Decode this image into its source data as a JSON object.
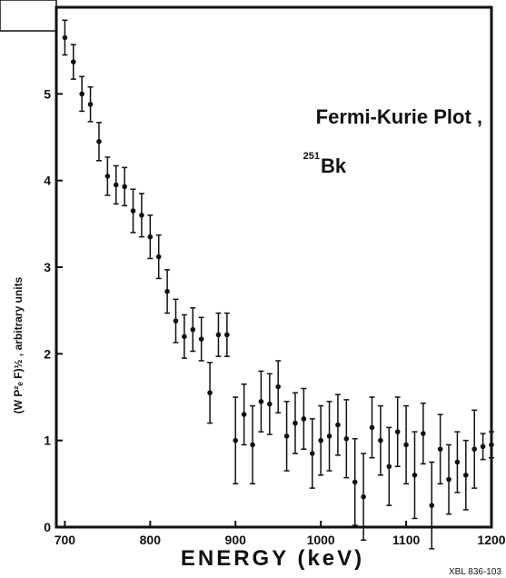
{
  "chart_data": {
    "type": "errorbar",
    "title": "Fermi-Kurie Plot ,",
    "isotope_mass": "251",
    "element": "Bk",
    "xlabel": "ENERGY   (keV)",
    "ylabel": "(W P²ₑ F)½ , arbitrary units",
    "footer": "XBL 836-103",
    "x": [
      700,
      710,
      720,
      730,
      740,
      750,
      760,
      770,
      780,
      790,
      800,
      810,
      820,
      830,
      840,
      850,
      860,
      870,
      880,
      890,
      900,
      910,
      920,
      930,
      940,
      950,
      960,
      970,
      980,
      990,
      1000,
      1010,
      1020,
      1030,
      1040,
      1050,
      1060,
      1070,
      1080,
      1090,
      1100,
      1110,
      1120,
      1130,
      1140,
      1150,
      1160,
      1170,
      1180,
      1190,
      1200
    ],
    "values": [
      5.65,
      5.37,
      5.0,
      4.88,
      4.45,
      4.05,
      3.95,
      3.93,
      3.65,
      3.6,
      3.35,
      3.12,
      2.72,
      2.38,
      2.2,
      2.28,
      2.17,
      1.55,
      2.22,
      2.22,
      1.0,
      1.3,
      0.95,
      1.45,
      1.42,
      1.62,
      1.05,
      1.2,
      1.25,
      0.85,
      1.0,
      1.05,
      1.18,
      1.02,
      0.52,
      0.35,
      1.15,
      1.0,
      0.7,
      1.1,
      0.95,
      0.6,
      1.08,
      0.25,
      0.9,
      0.55,
      0.75,
      0.6,
      0.9,
      0.93,
      0.95
    ],
    "errors": [
      0.2,
      0.2,
      0.2,
      0.2,
      0.22,
      0.22,
      0.22,
      0.22,
      0.25,
      0.25,
      0.25,
      0.25,
      0.25,
      0.25,
      0.25,
      0.25,
      0.25,
      0.35,
      0.25,
      0.25,
      0.5,
      0.35,
      0.45,
      0.35,
      0.35,
      0.3,
      0.4,
      0.35,
      0.35,
      0.4,
      0.4,
      0.4,
      0.35,
      0.45,
      0.5,
      0.5,
      0.35,
      0.4,
      0.45,
      0.4,
      0.45,
      0.5,
      0.35,
      0.5,
      0.4,
      0.4,
      0.35,
      0.4,
      0.45,
      0.15,
      0.15
    ],
    "color": "#111111",
    "xlim": [
      690,
      1200
    ],
    "xticks": [
      700,
      800,
      900,
      1000,
      1100,
      1200
    ],
    "ylim": [
      0,
      6
    ],
    "yticks": [
      0,
      1,
      2,
      3,
      4,
      5
    ]
  }
}
